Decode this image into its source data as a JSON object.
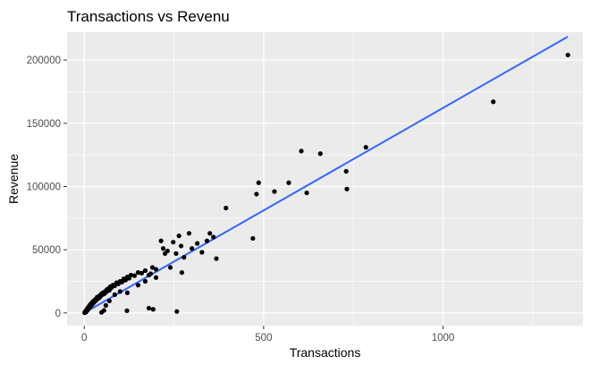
{
  "chart_data": {
    "type": "scatter",
    "title": "Transactions vs Revenu",
    "xlabel": "Transactions",
    "ylabel": "Revenue",
    "xlim": [
      -48,
      1390
    ],
    "ylim": [
      -10000,
      222000
    ],
    "x_ticks": [
      0,
      500,
      1000
    ],
    "x_tick_labels": [
      "0",
      "500",
      "1000"
    ],
    "y_ticks": [
      0,
      50000,
      100000,
      150000,
      200000
    ],
    "y_tick_labels": [
      "0",
      "50000",
      "100000",
      "150000",
      "200000"
    ],
    "grid": true,
    "legend": "none",
    "colors": {
      "panel": "#ebebeb",
      "grid": "#ffffff",
      "points": "#000000",
      "trend_line": "#3366ff"
    },
    "points": [
      [
        1,
        200
      ],
      [
        2,
        900
      ],
      [
        3,
        500
      ],
      [
        4,
        1500
      ],
      [
        5,
        800
      ],
      [
        6,
        2500
      ],
      [
        7,
        1800
      ],
      [
        8,
        3200
      ],
      [
        9,
        2200
      ],
      [
        10,
        4000
      ],
      [
        11,
        3000
      ],
      [
        12,
        4800
      ],
      [
        13,
        3800
      ],
      [
        14,
        5600
      ],
      [
        15,
        4500
      ],
      [
        16,
        6500
      ],
      [
        17,
        5200
      ],
      [
        18,
        7000
      ],
      [
        19,
        6000
      ],
      [
        20,
        7800
      ],
      [
        22,
        6800
      ],
      [
        24,
        9000
      ],
      [
        26,
        8000
      ],
      [
        28,
        10000
      ],
      [
        30,
        9200
      ],
      [
        32,
        11000
      ],
      [
        34,
        10200
      ],
      [
        36,
        12500
      ],
      [
        38,
        11500
      ],
      [
        40,
        13000
      ],
      [
        42,
        12000
      ],
      [
        44,
        14000
      ],
      [
        46,
        13500
      ],
      [
        48,
        15200
      ],
      [
        50,
        14500
      ],
      [
        52,
        16000
      ],
      [
        55,
        15000
      ],
      [
        58,
        17000
      ],
      [
        60,
        16200
      ],
      [
        63,
        18500
      ],
      [
        65,
        17500
      ],
      [
        68,
        19500
      ],
      [
        70,
        18000
      ],
      [
        73,
        21000
      ],
      [
        76,
        20000
      ],
      [
        80,
        22000
      ],
      [
        85,
        21500
      ],
      [
        90,
        24000
      ],
      [
        95,
        23000
      ],
      [
        100,
        25000
      ],
      [
        105,
        24500
      ],
      [
        110,
        27000
      ],
      [
        115,
        26000
      ],
      [
        120,
        28500
      ],
      [
        125,
        27500
      ],
      [
        130,
        30000
      ],
      [
        140,
        29500
      ],
      [
        150,
        32000
      ],
      [
        160,
        31500
      ],
      [
        170,
        33500
      ],
      [
        180,
        30000
      ],
      [
        190,
        36000
      ],
      [
        200,
        34500
      ],
      [
        48,
        500
      ],
      [
        55,
        2000
      ],
      [
        60,
        6000
      ],
      [
        70,
        9500
      ],
      [
        85,
        14500
      ],
      [
        100,
        17000
      ],
      [
        120,
        16000
      ],
      [
        150,
        22000
      ],
      [
        170,
        25000
      ],
      [
        185,
        31000
      ],
      [
        200,
        28000
      ],
      [
        119,
        1800
      ],
      [
        180,
        3800
      ],
      [
        192,
        2900
      ],
      [
        258,
        1200
      ],
      [
        272,
        32000
      ],
      [
        214,
        57000
      ],
      [
        220,
        51000
      ],
      [
        225,
        47000
      ],
      [
        232,
        49000
      ],
      [
        240,
        36000
      ],
      [
        248,
        56000
      ],
      [
        256,
        47000
      ],
      [
        264,
        61000
      ],
      [
        270,
        53000
      ],
      [
        278,
        44000
      ],
      [
        292,
        63000
      ],
      [
        300,
        51000
      ],
      [
        315,
        55000
      ],
      [
        328,
        48000
      ],
      [
        342,
        57000
      ],
      [
        350,
        63000
      ],
      [
        360,
        60000
      ],
      [
        368,
        43000
      ],
      [
        395,
        83000
      ],
      [
        470,
        59000
      ],
      [
        480,
        94000
      ],
      [
        486,
        103000
      ],
      [
        530,
        96000
      ],
      [
        570,
        103000
      ],
      [
        605,
        128000
      ],
      [
        620,
        95000
      ],
      [
        658,
        126000
      ],
      [
        730,
        112000
      ],
      [
        732,
        98000
      ],
      [
        785,
        131000
      ],
      [
        1140,
        167000
      ],
      [
        1348,
        204000
      ]
    ],
    "trend_line": [
      [
        0,
        100
      ],
      [
        1348,
        218500
      ]
    ]
  }
}
